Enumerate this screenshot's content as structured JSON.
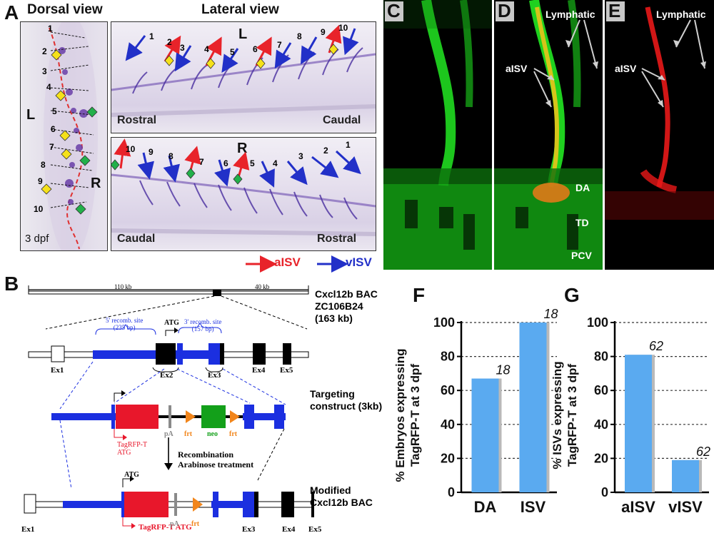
{
  "panelA": {
    "letter": "A",
    "dorsal_title": "Dorsal view",
    "lateral_title": "Lateral view",
    "stage": "3 dpf",
    "side_left": "L",
    "side_right": "R",
    "dorsal_numbers": [
      "1",
      "2",
      "3",
      "4",
      "5",
      "6",
      "7",
      "8",
      "9",
      "10"
    ],
    "top_panel": {
      "side": "L",
      "left_label": "Rostral",
      "right_label": "Caudal",
      "numbers": [
        "1",
        "2",
        "3",
        "4",
        "5",
        "6",
        "7",
        "8",
        "9",
        "10"
      ]
    },
    "bottom_panel": {
      "side": "R",
      "left_label": "Caudal",
      "right_label": "Rostral",
      "numbers": [
        "10",
        "9",
        "8",
        "7",
        "6",
        "5",
        "4",
        "3",
        "2",
        "1"
      ]
    },
    "legend_aisv": "aISV",
    "legend_visv": "vISV",
    "colors": {
      "aisv": "#e8232a",
      "visv": "#2230c8",
      "diamond_yellow": "#f5e11a",
      "diamond_green": "#22b04a"
    }
  },
  "panelC": {
    "letter": "C"
  },
  "panelD": {
    "letter": "D",
    "lymphatic": "Lymphatic",
    "aisv": "aISV",
    "da": "DA",
    "td": "TD",
    "pcv": "PCV"
  },
  "panelE": {
    "letter": "E",
    "lymphatic": "Lymphatic",
    "aisv": "aISV"
  },
  "panelB": {
    "letter": "B",
    "bac_left_kb": "110 kb",
    "bac_right_kb": "40 kb",
    "bac_title": [
      "Cxcl12b BAC",
      "ZC106B24",
      "(163 kb)"
    ],
    "recomb5": [
      "5' recomb. site",
      "(235 bp)"
    ],
    "recomb3": [
      "3' recomb. site",
      "(157 bp)"
    ],
    "atg": "ATG",
    "exons": [
      "Ex1",
      "Ex2",
      "Ex3",
      "Ex4",
      "Ex5"
    ],
    "targeting_title": [
      "Targeting",
      "construct (3kb)"
    ],
    "tagrfp_atg": [
      "TagRFP-T",
      "ATG"
    ],
    "pa": "pA",
    "frt": "frt",
    "neo": "neo",
    "recombination": [
      "Recombination",
      "Arabinose treatment"
    ],
    "modified_title": [
      "Modified",
      "Cxcl12b BAC"
    ],
    "tagrfp_atg_line": "TagRFP-T ATG",
    "colors": {
      "blue": "#1b2fe0",
      "red": "#e8172b",
      "green": "#13a01a",
      "orange": "#f2851a",
      "grey": "#8a8a8a"
    }
  },
  "panelF": {
    "letter": "F",
    "ylabel": [
      "% Embryos expressing",
      "TagRFP-T at 3 dpf"
    ],
    "yticks": [
      "0",
      "20",
      "40",
      "60",
      "80",
      "100"
    ],
    "chart_data": {
      "type": "bar",
      "categories": [
        "DA",
        "ISV"
      ],
      "values": [
        67,
        100
      ],
      "annotations": [
        "18",
        "18"
      ],
      "ylim": [
        0,
        100
      ],
      "grid": true
    }
  },
  "panelG": {
    "letter": "G",
    "ylabel": [
      "% ISVs expressing",
      "TagRFP-T at 3 dpf"
    ],
    "yticks": [
      "0",
      "20",
      "40",
      "60",
      "80",
      "100"
    ],
    "chart_data": {
      "type": "bar",
      "categories": [
        "aISV",
        "vISV"
      ],
      "values": [
        81,
        19
      ],
      "annotations": [
        "62",
        "62"
      ],
      "ylim": [
        0,
        100
      ],
      "grid": true
    }
  }
}
